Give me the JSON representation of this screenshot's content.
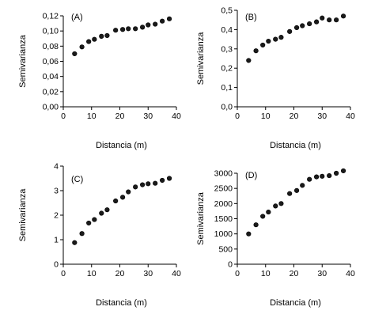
{
  "chart_data": [
    {
      "type": "scatter",
      "panel": "(A)",
      "xlabel": "Distancia (m)",
      "ylabel": "Semivarianza",
      "xlim": [
        0,
        40
      ],
      "ylim": [
        0,
        0.12
      ],
      "xticks": [
        "0",
        "10",
        "20",
        "30",
        "40"
      ],
      "yticks": [
        "0,00",
        "0,02",
        "0,04",
        "0,06",
        "0,08",
        "0,10",
        "0,12"
      ],
      "x": [
        4,
        6.6,
        9,
        11,
        13.5,
        15.5,
        18.5,
        21,
        23,
        25.5,
        28,
        30,
        32.5,
        35,
        37.5
      ],
      "y": [
        0.07,
        0.079,
        0.086,
        0.089,
        0.093,
        0.094,
        0.101,
        0.102,
        0.103,
        0.103,
        0.105,
        0.108,
        0.109,
        0.113,
        0.116
      ]
    },
    {
      "type": "scatter",
      "panel": "(B)",
      "xlabel": "Distancia (m)",
      "ylabel": "Semivarianza",
      "xlim": [
        0,
        40
      ],
      "ylim": [
        0,
        0.5
      ],
      "xticks": [
        "0",
        "10",
        "20",
        "30",
        "40"
      ],
      "yticks": [
        "0,0",
        "0,1",
        "0,2",
        "0,3",
        "0,4",
        "0,5"
      ],
      "x": [
        4,
        6.6,
        9,
        11,
        13.5,
        15.5,
        18.5,
        21,
        23,
        25.5,
        28,
        30,
        32.5,
        35,
        37.5
      ],
      "y": [
        0.24,
        0.29,
        0.32,
        0.34,
        0.35,
        0.36,
        0.39,
        0.41,
        0.42,
        0.43,
        0.44,
        0.46,
        0.45,
        0.45,
        0.47
      ]
    },
    {
      "type": "scatter",
      "panel": "(C)",
      "xlabel": "Distancia (m)",
      "ylabel": "Semivarianza",
      "xlim": [
        0,
        40
      ],
      "ylim": [
        0,
        4
      ],
      "xticks": [
        "0",
        "10",
        "20",
        "30",
        "40"
      ],
      "yticks": [
        "0",
        "1",
        "2",
        "3",
        "4"
      ],
      "x": [
        4,
        6.6,
        9,
        11,
        13.5,
        15.5,
        18.5,
        21,
        23,
        25.5,
        28,
        30,
        32.5,
        35,
        37.5
      ],
      "y": [
        0.88,
        1.25,
        1.68,
        1.82,
        2.08,
        2.22,
        2.58,
        2.73,
        2.95,
        3.15,
        3.24,
        3.28,
        3.3,
        3.42,
        3.5
      ]
    },
    {
      "type": "scatter",
      "panel": "(D)",
      "xlabel": "Distancia (m)",
      "ylabel": "Semivarianza",
      "xlim": [
        0,
        40
      ],
      "ylim": [
        0,
        3000
      ],
      "xticks": [
        "0",
        "10",
        "20",
        "30",
        "40"
      ],
      "yticks": [
        "0",
        "500",
        "1000",
        "1500",
        "2000",
        "2500",
        "3000"
      ],
      "x": [
        4,
        6.6,
        9,
        11,
        13.5,
        15.5,
        18.5,
        21,
        23,
        25.5,
        28,
        30,
        32.5,
        35,
        37.5
      ],
      "y": [
        1000,
        1300,
        1580,
        1720,
        1920,
        2000,
        2330,
        2430,
        2600,
        2800,
        2880,
        2900,
        2920,
        3000,
        3080
      ]
    }
  ]
}
